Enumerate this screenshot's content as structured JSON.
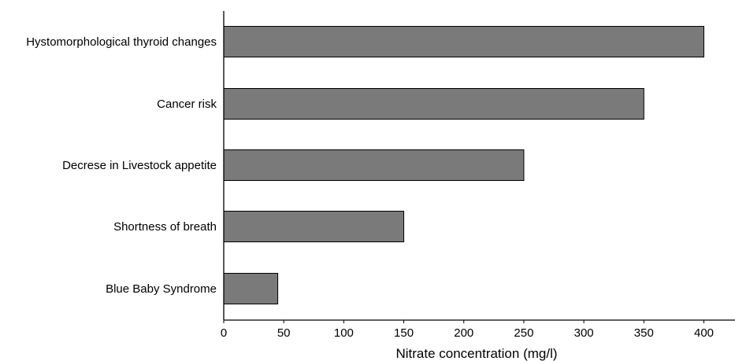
{
  "chart_data": {
    "type": "bar",
    "orientation": "horizontal",
    "categories": [
      "Hystomorphological thyroid changes",
      "Cancer risk",
      "Decrese in Livestock appetite",
      "Shortness of breath",
      "Blue Baby Syndrome"
    ],
    "values": [
      400,
      350,
      250,
      150,
      45
    ],
    "xlabel": "Nitrate concentration (mg/l)",
    "ylabel": "",
    "xlim": [
      0,
      420
    ],
    "xticks": [
      "0",
      "50",
      "100",
      "150",
      "200",
      "250",
      "300",
      "350",
      "400"
    ],
    "grid": false,
    "legend": "none",
    "bar_color": "#7a7a7a",
    "bar_edge_color": "#000000"
  }
}
